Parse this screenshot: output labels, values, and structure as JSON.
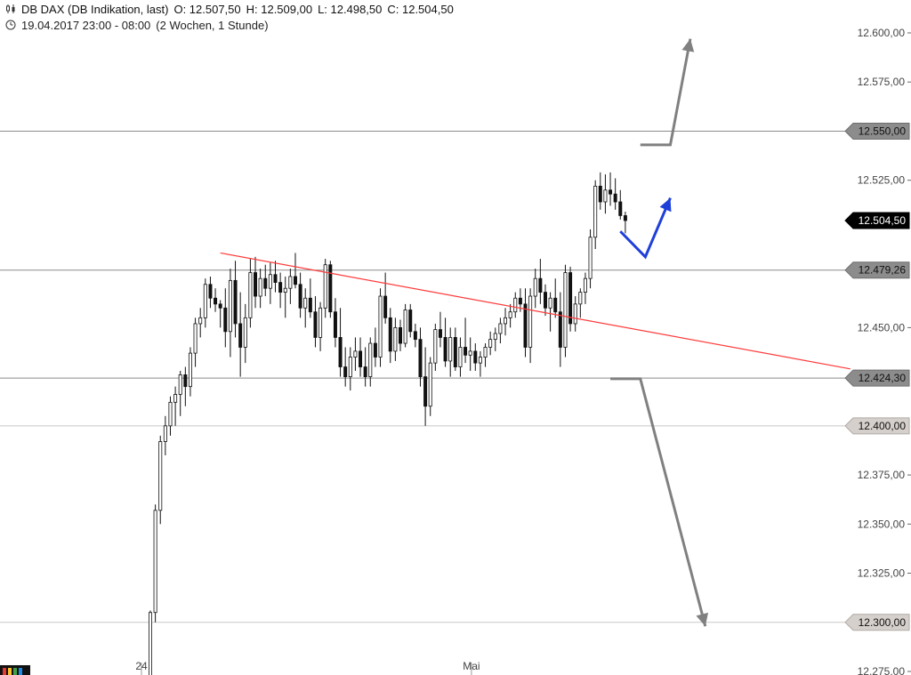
{
  "header": {
    "instrument_icon": "candlestick-icon",
    "instrument": "DB DAX (DB Indikation, last)",
    "open": "O: 12.507,50",
    "high": "H: 12.509,00",
    "low": "L: 12.498,50",
    "close": "C: 12.504,50",
    "clock_icon": "clock-icon",
    "range": "19.04.2017 23:00 - 08:00",
    "period": "(2 Wochen, 1 Stunde)"
  },
  "chart_data": {
    "type": "candlestick",
    "title": "DB DAX (DB Indikation, last)",
    "ylim": [
      12275,
      12610
    ],
    "y_ticks": [
      {
        "value": 12600,
        "label": "12.600,00"
      },
      {
        "value": 12575,
        "label": "12.575,00"
      },
      {
        "value": 12525,
        "label": "12.525,00"
      },
      {
        "value": 12450,
        "label": "12.450,00"
      },
      {
        "value": 12375,
        "label": "12.375,00"
      },
      {
        "value": 12350,
        "label": "12.350,00"
      },
      {
        "value": 12325,
        "label": "12.325,00"
      },
      {
        "value": 12275,
        "label": "12.275,00"
      }
    ],
    "x_labels": [
      {
        "index": 0,
        "label": "24"
      },
      {
        "index": 66,
        "label": "Mai"
      }
    ],
    "levels": [
      {
        "value": 12550,
        "label": "12.550,00",
        "style": "gray"
      },
      {
        "value": 12479.26,
        "label": "12.479,26",
        "style": "gray"
      },
      {
        "value": 12424.3,
        "label": "12.424,30",
        "style": "gray"
      },
      {
        "value": 12400,
        "label": "12.400,00",
        "style": "light"
      },
      {
        "value": 12300,
        "label": "12.300,00",
        "style": "light"
      }
    ],
    "last_price": {
      "value": 12504.5,
      "label": "12.504,50"
    },
    "trendline": {
      "from": {
        "index": 14,
        "value": 12488
      },
      "to": {
        "index": 140,
        "value": 12429
      },
      "color": "#ff3b3b"
    },
    "arrows": [
      {
        "color": "#1f3fd9",
        "points": [
          [
            94,
            12499
          ],
          [
            99,
            12486
          ],
          [
            104,
            12516
          ]
        ],
        "head": true
      },
      {
        "color": "#808080",
        "points": [
          [
            98,
            12543
          ],
          [
            104,
            12543
          ],
          [
            108,
            12597
          ]
        ],
        "head": true
      },
      {
        "color": "#808080",
        "points": [
          [
            92,
            12424
          ],
          [
            98,
            12424
          ],
          [
            111,
            12298
          ]
        ],
        "head": true
      }
    ],
    "candles": [
      [
        12270,
        12306,
        12262,
        12305
      ],
      [
        12305,
        12360,
        12300,
        12357
      ],
      [
        12357,
        12395,
        12350,
        12392
      ],
      [
        12392,
        12405,
        12385,
        12400
      ],
      [
        12400,
        12415,
        12395,
        12412
      ],
      [
        12412,
        12420,
        12400,
        12416
      ],
      [
        12416,
        12428,
        12405,
        12426
      ],
      [
        12426,
        12430,
        12410,
        12420
      ],
      [
        12420,
        12440,
        12415,
        12437
      ],
      [
        12437,
        12455,
        12430,
        12452
      ],
      [
        12452,
        12460,
        12445,
        12455
      ],
      [
        12455,
        12475,
        12450,
        12472
      ],
      [
        12472,
        12476,
        12460,
        12465
      ],
      [
        12465,
        12470,
        12458,
        12462
      ],
      [
        12462,
        12464,
        12450,
        12460
      ],
      [
        12460,
        12470,
        12440,
        12448
      ],
      [
        12448,
        12480,
        12435,
        12474
      ],
      [
        12474,
        12484,
        12445,
        12452
      ],
      [
        12452,
        12468,
        12425,
        12440
      ],
      [
        12440,
        12462,
        12432,
        12455
      ],
      [
        12455,
        12485,
        12450,
        12478
      ],
      [
        12478,
        12486,
        12460,
        12466
      ],
      [
        12466,
        12480,
        12460,
        12475
      ],
      [
        12475,
        12482,
        12466,
        12470
      ],
      [
        12470,
        12483,
        12462,
        12477
      ],
      [
        12477,
        12484,
        12468,
        12473
      ],
      [
        12473,
        12478,
        12460,
        12468
      ],
      [
        12468,
        12476,
        12455,
        12470
      ],
      [
        12470,
        12480,
        12462,
        12476
      ],
      [
        12476,
        12488,
        12470,
        12472
      ],
      [
        12472,
        12478,
        12455,
        12460
      ],
      [
        12460,
        12470,
        12450,
        12465
      ],
      [
        12465,
        12475,
        12455,
        12458
      ],
      [
        12458,
        12466,
        12440,
        12445
      ],
      [
        12445,
        12463,
        12438,
        12460
      ],
      [
        12460,
        12485,
        12455,
        12482
      ],
      [
        12482,
        12484,
        12455,
        12458
      ],
      [
        12458,
        12465,
        12440,
        12445
      ],
      [
        12445,
        12460,
        12425,
        12430
      ],
      [
        12430,
        12440,
        12420,
        12425
      ],
      [
        12425,
        12440,
        12418,
        12435
      ],
      [
        12435,
        12445,
        12428,
        12438
      ],
      [
        12438,
        12445,
        12425,
        12430
      ],
      [
        12430,
        12440,
        12420,
        12425
      ],
      [
        12425,
        12445,
        12420,
        12442
      ],
      [
        12442,
        12450,
        12430,
        12435
      ],
      [
        12435,
        12470,
        12430,
        12466
      ],
      [
        12466,
        12478,
        12452,
        12455
      ],
      [
        12455,
        12460,
        12432,
        12438
      ],
      [
        12438,
        12455,
        12433,
        12450
      ],
      [
        12450,
        12454,
        12438,
        12442
      ],
      [
        12442,
        12462,
        12440,
        12459
      ],
      [
        12459,
        12462,
        12445,
        12448
      ],
      [
        12448,
        12452,
        12440,
        12444
      ],
      [
        12444,
        12450,
        12420,
        12425
      ],
      [
        12425,
        12440,
        12400,
        12410
      ],
      [
        12410,
        12435,
        12405,
        12432
      ],
      [
        12432,
        12452,
        12428,
        12449
      ],
      [
        12449,
        12458,
        12440,
        12445
      ],
      [
        12445,
        12455,
        12430,
        12433
      ],
      [
        12433,
        12450,
        12425,
        12445
      ],
      [
        12445,
        12450,
        12428,
        12430
      ],
      [
        12430,
        12445,
        12425,
        12440
      ],
      [
        12440,
        12455,
        12432,
        12436
      ],
      [
        12436,
        12445,
        12428,
        12438
      ],
      [
        12438,
        12442,
        12428,
        12432
      ],
      [
        12432,
        12438,
        12425,
        12435
      ],
      [
        12435,
        12442,
        12430,
        12440
      ],
      [
        12440,
        12448,
        12436,
        12444
      ],
      [
        12444,
        12450,
        12438,
        12447
      ],
      [
        12447,
        12455,
        12442,
        12452
      ],
      [
        12452,
        12460,
        12446,
        12455
      ],
      [
        12455,
        12462,
        12450,
        12458
      ],
      [
        12458,
        12468,
        12455,
        12465
      ],
      [
        12465,
        12470,
        12458,
        12462
      ],
      [
        12462,
        12470,
        12435,
        12440
      ],
      [
        12440,
        12470,
        12432,
        12466
      ],
      [
        12466,
        12480,
        12460,
        12475
      ],
      [
        12475,
        12485,
        12462,
        12468
      ],
      [
        12468,
        12472,
        12456,
        12460
      ],
      [
        12460,
        12468,
        12448,
        12465
      ],
      [
        12465,
        12475,
        12455,
        12458
      ],
      [
        12458,
        12468,
        12430,
        12440
      ],
      [
        12440,
        12482,
        12435,
        12478
      ],
      [
        12478,
        12481,
        12448,
        12452
      ],
      [
        12452,
        12466,
        12448,
        12462
      ],
      [
        12462,
        12470,
        12455,
        12468
      ],
      [
        12468,
        12478,
        12462,
        12475
      ],
      [
        12475,
        12500,
        12470,
        12496
      ],
      [
        12496,
        12525,
        12490,
        12522
      ],
      [
        12522,
        12529,
        12510,
        12514
      ],
      [
        12514,
        12528,
        12508,
        12520
      ],
      [
        12520,
        12529,
        12512,
        12518
      ],
      [
        12518,
        12526,
        12510,
        12514
      ],
      [
        12514,
        12520,
        12505,
        12507
      ],
      [
        12507,
        12509,
        12498,
        12504.5
      ]
    ]
  }
}
